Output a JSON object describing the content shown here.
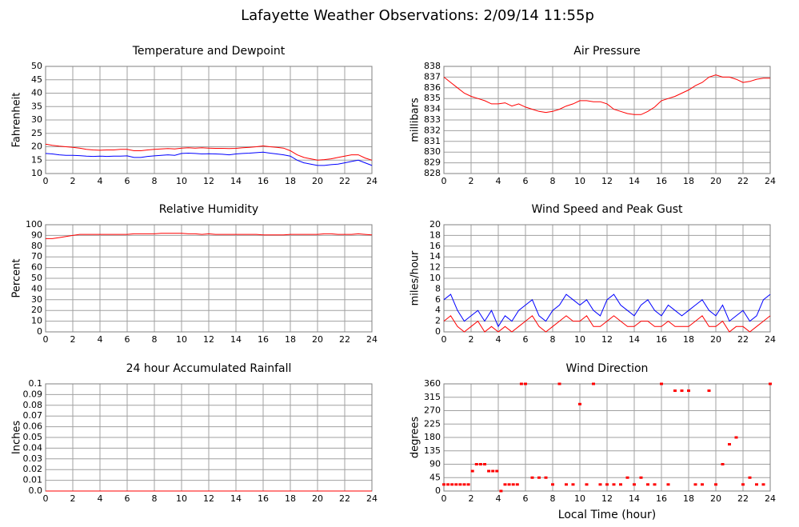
{
  "title": "Lafayette Weather Observations: 2/09/14 11:55p",
  "chart_data": [
    {
      "type": "line",
      "title": "Temperature and Dewpoint",
      "y_label": "Fahrenheit",
      "x": [
        0,
        0.5,
        1,
        1.5,
        2,
        2.5,
        3,
        3.5,
        4,
        4.5,
        5,
        5.5,
        6,
        6.5,
        7,
        7.5,
        8,
        8.5,
        9,
        9.5,
        10,
        10.5,
        11,
        11.5,
        12,
        12.5,
        13,
        13.5,
        14,
        14.5,
        15,
        15.5,
        16,
        16.5,
        17,
        17.5,
        18,
        18.5,
        19,
        19.5,
        20,
        20.5,
        21,
        21.5,
        22,
        22.5,
        23,
        23.5,
        24
      ],
      "series": [
        {
          "color": "#ff0000",
          "values": [
            21,
            20.5,
            20.2,
            20,
            19.8,
            19.5,
            19,
            18.8,
            18.7,
            18.8,
            18.8,
            19,
            19,
            18.5,
            18.5,
            18.8,
            19,
            19.2,
            19.3,
            19.2,
            19.5,
            19.6,
            19.5,
            19.6,
            19.5,
            19.4,
            19.4,
            19.3,
            19.4,
            19.6,
            19.8,
            20,
            20.3,
            20,
            19.8,
            19.5,
            18.5,
            17,
            16,
            15.5,
            15,
            15.2,
            15.5,
            16,
            16.5,
            17,
            17,
            15.8,
            15
          ]
        },
        {
          "color": "#0000ff",
          "values": [
            17.5,
            17.3,
            17,
            16.8,
            16.8,
            16.7,
            16.5,
            16.4,
            16.5,
            16.4,
            16.5,
            16.5,
            16.6,
            16,
            16,
            16.4,
            16.6,
            16.8,
            17,
            16.8,
            17.5,
            17.6,
            17.5,
            17.3,
            17.4,
            17.3,
            17.2,
            17,
            17.3,
            17.5,
            17.6,
            17.8,
            18,
            17.6,
            17.3,
            17,
            16.5,
            15,
            14,
            13.5,
            13,
            13,
            13.3,
            13.5,
            14,
            14.5,
            15,
            14,
            13
          ]
        }
      ],
      "xlim": [
        0,
        24
      ],
      "xticks": [
        0,
        2,
        4,
        6,
        8,
        10,
        12,
        14,
        16,
        18,
        20,
        22,
        24
      ],
      "ylim": [
        10,
        50
      ],
      "yticks": [
        10,
        15,
        20,
        25,
        30,
        35,
        40,
        45,
        50
      ],
      "grid": true
    },
    {
      "type": "line",
      "title": "Air Pressure",
      "y_label": "millibars",
      "x": [
        0,
        0.5,
        1,
        1.5,
        2,
        2.5,
        3,
        3.5,
        4,
        4.5,
        5,
        5.5,
        6,
        6.5,
        7,
        7.5,
        8,
        8.5,
        9,
        9.5,
        10,
        10.5,
        11,
        11.5,
        12,
        12.5,
        13,
        13.5,
        14,
        14.5,
        15,
        15.5,
        16,
        16.5,
        17,
        17.5,
        18,
        18.5,
        19,
        19.5,
        20,
        20.5,
        21,
        21.5,
        22,
        22.5,
        23,
        23.5,
        24
      ],
      "series": [
        {
          "color": "#ff0000",
          "values": [
            837,
            836.5,
            836,
            835.5,
            835.2,
            835,
            834.8,
            834.5,
            834.5,
            834.6,
            834.3,
            834.5,
            834.2,
            834,
            833.8,
            833.7,
            833.8,
            834,
            834.3,
            834.5,
            834.8,
            834.8,
            834.7,
            834.7,
            834.5,
            834,
            833.8,
            833.6,
            833.5,
            833.5,
            833.8,
            834.2,
            834.8,
            835,
            835.2,
            835.5,
            835.8,
            836.2,
            836.5,
            837,
            837.2,
            837,
            837,
            836.8,
            836.5,
            836.6,
            836.8,
            836.9,
            836.9
          ]
        }
      ],
      "xlim": [
        0,
        24
      ],
      "xticks": [
        0,
        2,
        4,
        6,
        8,
        10,
        12,
        14,
        16,
        18,
        20,
        22,
        24
      ],
      "ylim": [
        828,
        838
      ],
      "yticks": [
        828,
        829,
        830,
        831,
        832,
        833,
        834,
        835,
        836,
        837,
        838
      ],
      "grid": true
    },
    {
      "type": "line",
      "title": "Relative Humidity",
      "y_label": "Percent",
      "x": [
        0,
        0.5,
        1,
        1.5,
        2,
        2.5,
        3,
        3.5,
        4,
        4.5,
        5,
        5.5,
        6,
        6.5,
        7,
        7.5,
        8,
        8.5,
        9,
        9.5,
        10,
        10.5,
        11,
        11.5,
        12,
        12.5,
        13,
        13.5,
        14,
        14.5,
        15,
        15.5,
        16,
        16.5,
        17,
        17.5,
        18,
        18.5,
        19,
        19.5,
        20,
        20.5,
        21,
        21.5,
        22,
        22.5,
        23,
        23.5,
        24
      ],
      "series": [
        {
          "color": "#ff0000",
          "values": [
            87,
            87,
            88,
            89,
            90,
            91,
            91,
            91,
            91,
            91,
            91,
            91,
            91,
            91.5,
            91.5,
            91.5,
            91.5,
            92,
            92,
            92,
            92,
            91.5,
            91.5,
            91,
            91.5,
            91,
            91,
            91,
            91,
            91,
            91,
            91,
            90.5,
            90.5,
            90.5,
            90.5,
            91,
            91,
            91,
            91,
            91,
            91.5,
            91.5,
            91,
            91,
            91,
            91.5,
            91,
            90.5
          ]
        }
      ],
      "xlim": [
        0,
        24
      ],
      "xticks": [
        0,
        2,
        4,
        6,
        8,
        10,
        12,
        14,
        16,
        18,
        20,
        22,
        24
      ],
      "ylim": [
        0,
        100
      ],
      "yticks": [
        0,
        10,
        20,
        30,
        40,
        50,
        60,
        70,
        80,
        90,
        100
      ],
      "grid": true
    },
    {
      "type": "line",
      "title": "Wind Speed and Peak Gust",
      "y_label": "miles/hour",
      "x": [
        0,
        0.5,
        1,
        1.5,
        2,
        2.5,
        3,
        3.5,
        4,
        4.5,
        5,
        5.5,
        6,
        6.5,
        7,
        7.5,
        8,
        8.5,
        9,
        9.5,
        10,
        10.5,
        11,
        11.5,
        12,
        12.5,
        13,
        13.5,
        14,
        14.5,
        15,
        15.5,
        16,
        16.5,
        17,
        17.5,
        18,
        18.5,
        19,
        19.5,
        20,
        20.5,
        21,
        21.5,
        22,
        22.5,
        23,
        23.5,
        24
      ],
      "series": [
        {
          "color": "#0000ff",
          "values": [
            6,
            7,
            4,
            2,
            3,
            4,
            2,
            4,
            1,
            3,
            2,
            4,
            5,
            6,
            3,
            2,
            4,
            5,
            7,
            6,
            5,
            6,
            4,
            3,
            6,
            7,
            5,
            4,
            3,
            5,
            6,
            4,
            3,
            5,
            4,
            3,
            4,
            5,
            6,
            4,
            3,
            5,
            2,
            3,
            4,
            2,
            3,
            6,
            7
          ]
        },
        {
          "color": "#ff0000",
          "values": [
            2,
            3,
            1,
            0,
            1,
            2,
            0,
            1,
            0,
            1,
            0,
            1,
            2,
            3,
            1,
            0,
            1,
            2,
            3,
            2,
            2,
            3,
            1,
            1,
            2,
            3,
            2,
            1,
            1,
            2,
            2,
            1,
            1,
            2,
            1,
            1,
            1,
            2,
            3,
            1,
            1,
            2,
            0,
            1,
            1,
            0,
            1,
            2,
            3
          ]
        }
      ],
      "xlim": [
        0,
        24
      ],
      "xticks": [
        0,
        2,
        4,
        6,
        8,
        10,
        12,
        14,
        16,
        18,
        20,
        22,
        24
      ],
      "ylim": [
        0,
        20
      ],
      "yticks": [
        0,
        2,
        4,
        6,
        8,
        10,
        12,
        14,
        16,
        18,
        20
      ],
      "grid": true
    },
    {
      "type": "line",
      "title": "24 hour Accumulated Rainfall",
      "y_label": "Inches",
      "x": [
        0,
        24
      ],
      "series": [
        {
          "color": "#ff0000",
          "values": [
            0,
            0
          ]
        }
      ],
      "xlim": [
        0,
        24
      ],
      "xticks": [
        0,
        2,
        4,
        6,
        8,
        10,
        12,
        14,
        16,
        18,
        20,
        22,
        24
      ],
      "ylim": [
        0,
        0.1
      ],
      "yticks": [
        {
          "value": 0,
          "label": "0.0"
        },
        0.01,
        0.02,
        0.03,
        0.04,
        0.05,
        0.06,
        0.07,
        0.08,
        0.09,
        0.1
      ],
      "grid": true
    },
    {
      "type": "scatter",
      "title": "Wind Direction",
      "y_label": "degrees",
      "x_label": "Local Time (hour)",
      "x": [
        0,
        0.3,
        0.6,
        0.9,
        1.2,
        1.5,
        1.8,
        2.1,
        2.4,
        2.7,
        3.0,
        3.3,
        3.6,
        3.9,
        4.2,
        4.5,
        4.8,
        5.1,
        5.4,
        5.7,
        6.0,
        6.5,
        7.0,
        7.5,
        8.0,
        8.5,
        9.0,
        9.5,
        10.0,
        10.5,
        11.0,
        11.5,
        12.0,
        12.5,
        13.0,
        13.5,
        14.0,
        14.5,
        15.0,
        15.5,
        16.0,
        16.5,
        17.0,
        17.5,
        18.0,
        18.5,
        19.0,
        19.5,
        20.0,
        20.5,
        21.0,
        21.5,
        22.0,
        22.5,
        23.0,
        23.5,
        24.0
      ],
      "values": [
        22,
        22,
        22,
        22,
        22,
        22,
        22,
        67,
        90,
        90,
        90,
        67,
        67,
        67,
        0,
        22,
        22,
        22,
        22,
        360,
        360,
        45,
        45,
        45,
        22,
        360,
        22,
        22,
        292,
        22,
        360,
        22,
        22,
        22,
        22,
        45,
        22,
        45,
        22,
        22,
        360,
        22,
        337,
        337,
        337,
        22,
        22,
        337,
        22,
        90,
        157,
        180,
        22,
        45,
        22,
        22,
        360
      ],
      "color": "#ff0000",
      "xlim": [
        0,
        24
      ],
      "xticks": [
        0,
        2,
        4,
        6,
        8,
        10,
        12,
        14,
        16,
        18,
        20,
        22,
        24
      ],
      "ylim": [
        0,
        360
      ],
      "yticks": [
        0,
        45,
        90,
        135,
        180,
        225,
        270,
        315,
        360
      ],
      "grid": true
    }
  ]
}
